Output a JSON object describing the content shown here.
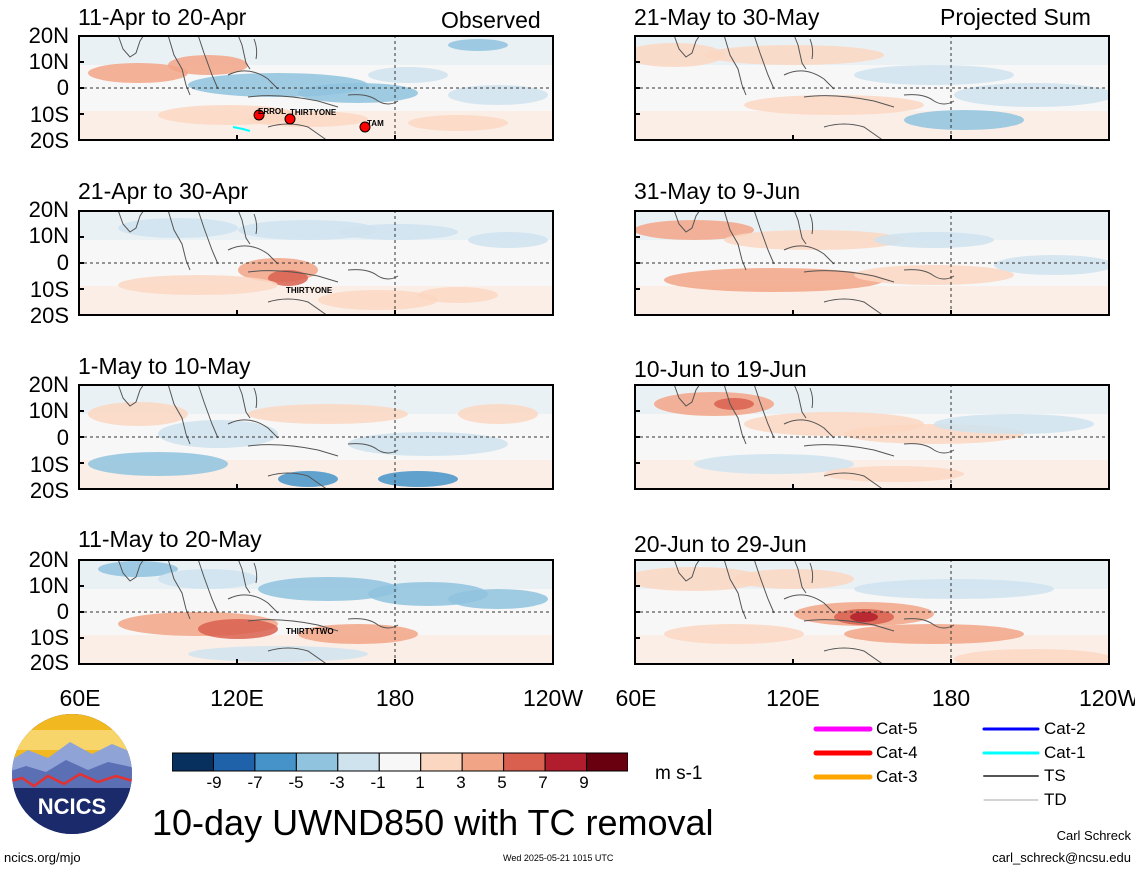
{
  "figure": {
    "title": "10-day UWND850 with TC removal",
    "unit": "m s-1",
    "footer_left": "ncics.org/mjo",
    "footer_center": "Wed 2025-05-21 1015 UTC",
    "author": "Carl Schreck",
    "email": "carl_schreck@ncsu.edu",
    "logo_text": "NCICS"
  },
  "columns": {
    "left_tag": "Observed",
    "right_tag": "Projected Sum"
  },
  "axes": {
    "lat_labels": [
      "20N",
      "10N",
      "0",
      "10S",
      "20S"
    ],
    "lon_labels": [
      "60E",
      "120E",
      "180",
      "120W"
    ],
    "lon_labels_right": [
      "60E",
      "120E",
      "180",
      "120W"
    ]
  },
  "panels": [
    {
      "id": "p1",
      "title": "11-Apr to 20-Apr",
      "column": "observed",
      "storms": [
        {
          "name": "ERROL",
          "cat": "Cat-4"
        },
        {
          "name": "THIRTYONE",
          "cat": "Cat-4"
        },
        {
          "name": "TAM",
          "cat": "Cat-4"
        }
      ]
    },
    {
      "id": "p2",
      "title": "21-Apr to 30-Apr",
      "column": "observed",
      "storms": [
        {
          "name": "THIRTYONE",
          "cat": "TS"
        }
      ]
    },
    {
      "id": "p3",
      "title": "1-May to 10-May",
      "column": "observed",
      "storms": []
    },
    {
      "id": "p4",
      "title": "11-May to 20-May",
      "column": "observed",
      "storms": [
        {
          "name": "THIRTYTWO",
          "cat": "TS"
        }
      ]
    },
    {
      "id": "p5",
      "title": "21-May to 30-May",
      "column": "projected",
      "storms": []
    },
    {
      "id": "p6",
      "title": "31-May to 9-Jun",
      "column": "projected",
      "storms": []
    },
    {
      "id": "p7",
      "title": "10-Jun to 19-Jun",
      "column": "projected",
      "storms": []
    },
    {
      "id": "p8",
      "title": "20-Jun to 29-Jun",
      "column": "projected",
      "storms": []
    }
  ],
  "colorbar": {
    "labels": [
      "-9",
      "-7",
      "-5",
      "-3",
      "-1",
      "1",
      "3",
      "5",
      "7",
      "9"
    ],
    "colors": [
      "#08305f",
      "#1f62aa",
      "#4593c8",
      "#8fc3de",
      "#cfe3ef",
      "#f7f7f7",
      "#fbd7c2",
      "#f2a486",
      "#d9604f",
      "#b11d2c",
      "#69000f"
    ]
  },
  "legend": {
    "items": [
      {
        "label": "Cat-5",
        "color": "#ff00ff",
        "width": 5
      },
      {
        "label": "Cat-4",
        "color": "#ff0000",
        "width": 5
      },
      {
        "label": "Cat-3",
        "color": "#ffa500",
        "width": 5
      },
      {
        "label": "Cat-2",
        "color": "#0000ff",
        "width": 3
      },
      {
        "label": "Cat-1",
        "color": "#00ffff",
        "width": 3
      },
      {
        "label": "TS",
        "color": "#555555",
        "width": 2
      },
      {
        "label": "TD",
        "color": "#aaaaaa",
        "width": 1
      }
    ]
  }
}
